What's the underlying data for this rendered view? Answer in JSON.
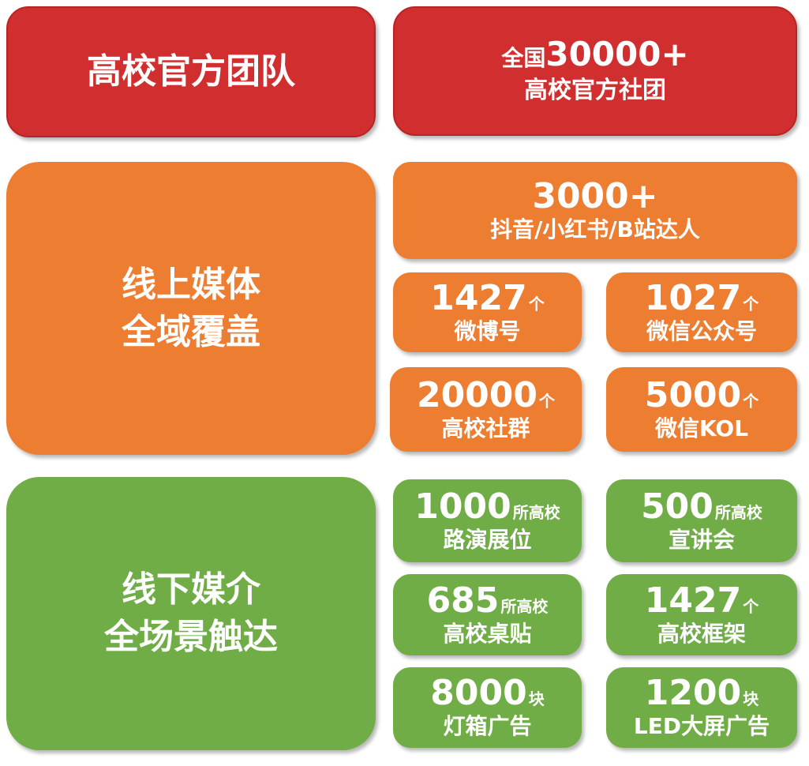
{
  "colors": {
    "red": "#d12f2f",
    "orange": "#ed7d31",
    "green": "#70ad47"
  },
  "team": {
    "title": "高校官方团队",
    "stat_prefix": "全国",
    "stat_number": "30000+",
    "stat_label": "高校官方社团"
  },
  "online": {
    "title_line1": "线上媒体",
    "title_line2": "全域覆盖",
    "top": {
      "number": "3000+",
      "label": "抖音/小红书/B站达人"
    },
    "cards": [
      {
        "number": "1427",
        "unit": "个",
        "label": "微博号"
      },
      {
        "number": "1027",
        "unit": "个",
        "label": "微信公众号"
      },
      {
        "number": "20000",
        "unit": "个",
        "label": "高校社群"
      },
      {
        "number": "5000",
        "unit": "个",
        "label": "微信KOL"
      }
    ]
  },
  "offline": {
    "title_line1": "线下媒介",
    "title_line2": "全场景触达",
    "cards": [
      {
        "number": "1000",
        "unit": "所高校",
        "label": "路演展位"
      },
      {
        "number": "500",
        "unit": "所高校",
        "label": "宣讲会"
      },
      {
        "number": "685",
        "unit": "所高校",
        "label": "高校桌贴"
      },
      {
        "number": "1427",
        "unit": "个",
        "label": "高校框架"
      },
      {
        "number": "8000",
        "unit": "块",
        "label": "灯箱广告"
      },
      {
        "number": "1200",
        "unit": "块",
        "label": "LED大屏广告"
      }
    ]
  }
}
